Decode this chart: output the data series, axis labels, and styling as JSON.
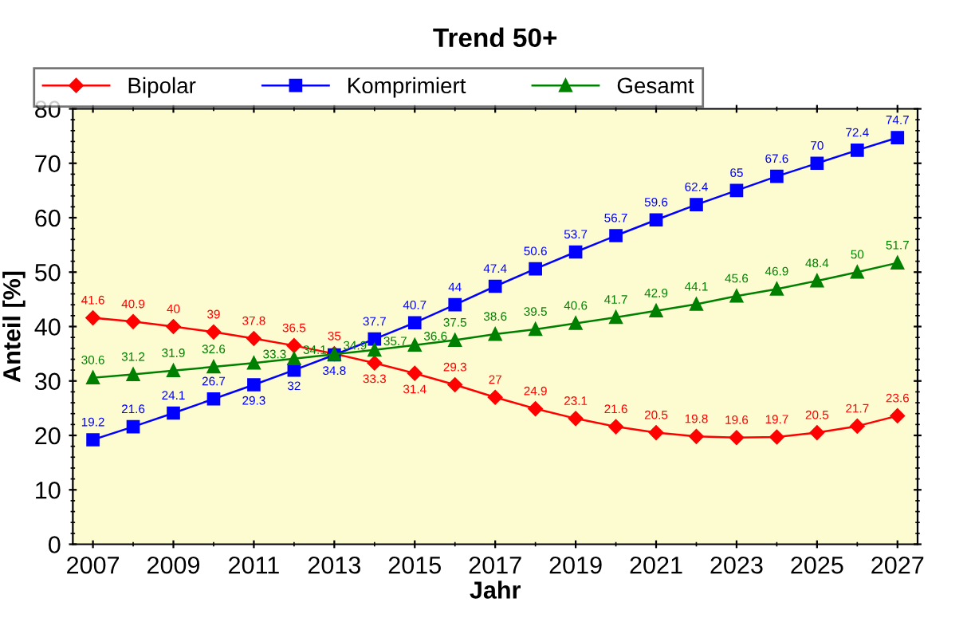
{
  "chart_data": {
    "type": "line",
    "title": "Trend 50+",
    "xlabel": "Jahr",
    "ylabel": "Anteil [%]",
    "x": [
      2007,
      2008,
      2009,
      2010,
      2011,
      2012,
      2013,
      2014,
      2015,
      2016,
      2017,
      2018,
      2019,
      2020,
      2021,
      2022,
      2023,
      2024,
      2025,
      2026,
      2027
    ],
    "series": [
      {
        "name": "Bipolar",
        "color": "#ff0000",
        "marker": "diamond",
        "values": [
          41.6,
          40.9,
          40,
          39,
          37.8,
          36.5,
          35,
          33.3,
          31.4,
          29.3,
          27,
          24.9,
          23.1,
          21.6,
          20.5,
          19.8,
          19.6,
          19.7,
          20.5,
          21.7,
          23.6
        ]
      },
      {
        "name": "Komprimiert",
        "color": "#0000ff",
        "marker": "square",
        "values": [
          19.2,
          21.6,
          24.1,
          26.7,
          29.3,
          32,
          34.8,
          37.7,
          40.7,
          44,
          47.4,
          50.6,
          53.7,
          56.7,
          59.6,
          62.4,
          65,
          67.6,
          70,
          72.4,
          74.7
        ]
      },
      {
        "name": "Gesamt",
        "color": "#008000",
        "marker": "triangle",
        "values": [
          30.6,
          31.2,
          31.9,
          32.6,
          33.3,
          34.1,
          34.9,
          35.7,
          36.6,
          37.5,
          38.6,
          39.5,
          40.6,
          41.7,
          42.9,
          44.1,
          45.6,
          46.9,
          48.4,
          50,
          51.7
        ]
      }
    ],
    "xlim": [
      2006.5,
      2027.5
    ],
    "xticks": [
      2007,
      2009,
      2011,
      2013,
      2015,
      2017,
      2019,
      2021,
      2023,
      2025,
      2027
    ],
    "ylim": [
      0,
      80
    ],
    "yticks": [
      0,
      10,
      20,
      30,
      40,
      50,
      60,
      70,
      80
    ],
    "grid": false,
    "legend": "top",
    "data_labels": true,
    "line_style": "solid"
  }
}
